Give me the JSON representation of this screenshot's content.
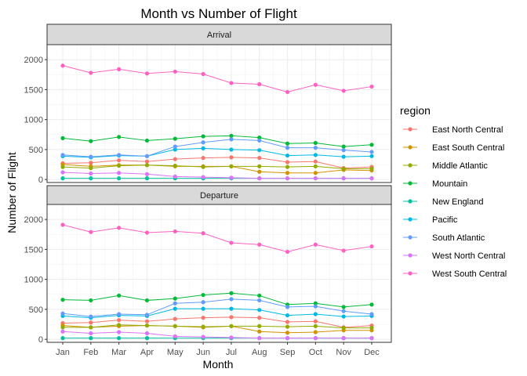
{
  "chart_data": {
    "type": "line",
    "title": "Month vs Number of Flight",
    "xlabel": "Month",
    "ylabel": "Number of Flight",
    "categories": [
      "Jan",
      "Feb",
      "Mar",
      "Apr",
      "May",
      "Jun",
      "Jul",
      "Aug",
      "Sep",
      "Oct",
      "Nov",
      "Dec"
    ],
    "ylim": [
      -50,
      2250
    ],
    "yticks": [
      0,
      500,
      1000,
      1500,
      2000
    ],
    "grid": true,
    "legend_title": "region",
    "legend_position": "right",
    "series_meta": [
      {
        "name": "East North Central",
        "color": "#F8766D"
      },
      {
        "name": "East South Central",
        "color": "#D39200"
      },
      {
        "name": "Middle Atlantic",
        "color": "#93AA00"
      },
      {
        "name": "Mountain",
        "color": "#00BA38"
      },
      {
        "name": "New England",
        "color": "#00C19F"
      },
      {
        "name": "Pacific",
        "color": "#00B9E3"
      },
      {
        "name": "South Atlantic",
        "color": "#619CFF"
      },
      {
        "name": "West North Central",
        "color": "#DB72FB"
      },
      {
        "name": "West South Central",
        "color": "#FF61C3"
      }
    ],
    "panels": [
      {
        "label": "Arrival",
        "series": [
          {
            "name": "East North Central",
            "values": [
              270,
              280,
              320,
              300,
              340,
              360,
              370,
              360,
              290,
              300,
              190,
              210
            ]
          },
          {
            "name": "East South Central",
            "values": [
              250,
              220,
              240,
              240,
              220,
              220,
              220,
              130,
              110,
              110,
              160,
              150
            ]
          },
          {
            "name": "Middle Atlantic",
            "values": [
              210,
              190,
              230,
              240,
              230,
              210,
              220,
              220,
              210,
              220,
              180,
              180
            ]
          },
          {
            "name": "Mountain",
            "values": [
              690,
              640,
              710,
              650,
              680,
              720,
              730,
              700,
              600,
              610,
              550,
              580
            ]
          },
          {
            "name": "New England",
            "values": [
              20,
              20,
              20,
              20,
              20,
              20,
              20,
              20,
              20,
              20,
              20,
              20
            ]
          },
          {
            "name": "Pacific",
            "values": [
              390,
              370,
              400,
              390,
              500,
              520,
              500,
              490,
              400,
              410,
              380,
              390
            ]
          },
          {
            "name": "South Atlantic",
            "values": [
              410,
              380,
              410,
              390,
              550,
              620,
              670,
              650,
              530,
              530,
              490,
              460
            ]
          },
          {
            "name": "West North Central",
            "values": [
              120,
              100,
              110,
              90,
              50,
              40,
              30,
              20,
              20,
              20,
              20,
              20
            ]
          },
          {
            "name": "West South Central",
            "values": [
              1900,
              1780,
              1840,
              1770,
              1800,
              1760,
              1610,
              1590,
              1460,
              1580,
              1480,
              1550
            ]
          }
        ]
      },
      {
        "label": "Departure",
        "series": [
          {
            "name": "East North Central",
            "values": [
              270,
              280,
              320,
              300,
              340,
              360,
              370,
              360,
              290,
              300,
              200,
              230
            ]
          },
          {
            "name": "East South Central",
            "values": [
              230,
              200,
              220,
              230,
              220,
              200,
              220,
              130,
              110,
              120,
              150,
              150
            ]
          },
          {
            "name": "Middle Atlantic",
            "values": [
              200,
              200,
              240,
              230,
              220,
              210,
              220,
              220,
              210,
              220,
              190,
              190
            ]
          },
          {
            "name": "Mountain",
            "values": [
              660,
              650,
              730,
              650,
              680,
              740,
              770,
              730,
              580,
              600,
              540,
              580
            ]
          },
          {
            "name": "New England",
            "values": [
              20,
              20,
              20,
              20,
              20,
              20,
              20,
              20,
              20,
              20,
              20,
              20
            ]
          },
          {
            "name": "Pacific",
            "values": [
              390,
              360,
              400,
              390,
              510,
              510,
              510,
              490,
              400,
              420,
              380,
              390
            ]
          },
          {
            "name": "South Atlantic",
            "values": [
              430,
              380,
              420,
              410,
              600,
              620,
              670,
              650,
              540,
              550,
              470,
              420
            ]
          },
          {
            "name": "West North Central",
            "values": [
              130,
              100,
              120,
              100,
              50,
              40,
              30,
              20,
              20,
              20,
              20,
              20
            ]
          },
          {
            "name": "West South Central",
            "values": [
              1910,
              1790,
              1860,
              1780,
              1800,
              1770,
              1610,
              1580,
              1460,
              1580,
              1480,
              1550
            ]
          }
        ]
      }
    ]
  }
}
